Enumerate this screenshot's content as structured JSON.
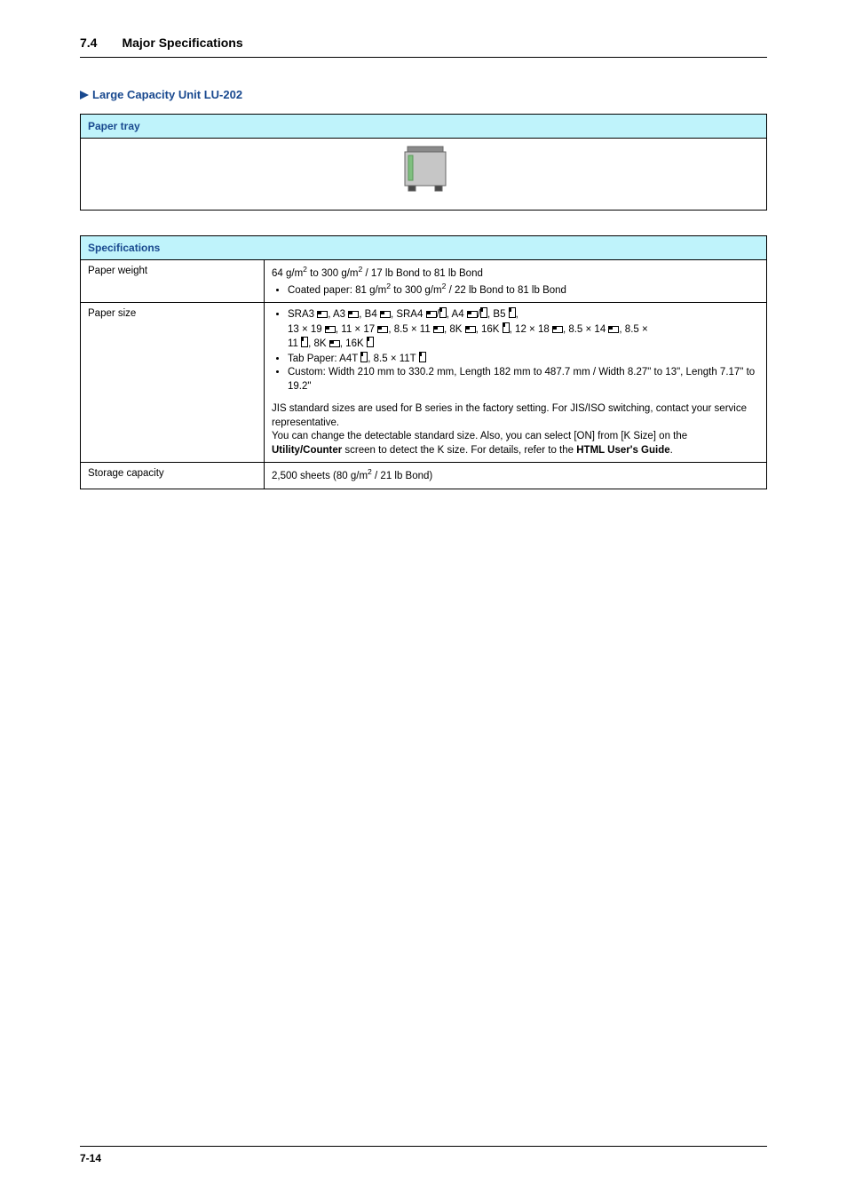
{
  "header": {
    "section_number": "7.4",
    "section_title": "Major Specifications"
  },
  "subheading": "Large Capacity Unit LU-202",
  "paper_tray_table": {
    "header": "Paper tray",
    "tray_icon": {
      "outer_stroke": "#656565",
      "outer_fill": "#c6c6c6",
      "leg_stroke": "#656565",
      "handle_fill": "#7fbf7f",
      "handle_stroke": "#5a9a5a",
      "top_stroke": "#656565",
      "top_fill": "#8a8a8a"
    }
  },
  "spec_table": {
    "header": "Specifications",
    "rows": {
      "paper_weight": {
        "label": "Paper weight",
        "line1_pre": "64 g/m",
        "line1_mid": " to 300 g/m",
        "line1_post": " / 17 lb Bond to 81 lb Bond",
        "bullet_pre": "Coated paper: 81 g/m",
        "bullet_mid": " to 300 g/m",
        "bullet_post": " / 22 lb Bond to 81 lb Bond"
      },
      "paper_size": {
        "label": "Paper size",
        "bullet1_parts": [
          "SRA3 ",
          "w",
          ", A3 ",
          "w",
          ", B4 ",
          "w",
          ", SRA4 ",
          "w",
          "/",
          "v",
          ", A4 ",
          "w",
          "/",
          "v",
          ", B5 ",
          "v",
          ","
        ],
        "line2_parts": [
          "13 × 19 ",
          "w",
          ", 11 × 17 ",
          "w",
          ", 8.5 × 11 ",
          "w",
          ", 8K ",
          "w",
          ", 16K ",
          "v",
          ", 12 × 18 ",
          "w",
          ", 8.5 × 14 ",
          "w",
          ", 8.5 × "
        ],
        "line3_parts": [
          "11 ",
          "v",
          ", 8K ",
          "w",
          ", 16K ",
          "v"
        ],
        "bullet2_parts": [
          "Tab Paper: A4T ",
          "v",
          ", 8.5 × 11T ",
          "v"
        ],
        "bullet3": "Custom: Width 210 mm to 330.2 mm, Length 182 mm to 487.7 mm / Width 8.27\" to 13\", Length 7.17\" to 19.2\"",
        "para1": "JIS standard sizes are used for B series in the factory setting. For JIS/ISO switching, contact your service representative.",
        "para2_pre": "You can change the detectable standard size. Also, you can select [ON] from [K Size] on the ",
        "para2_b1": "Utility/Counter",
        "para2_mid": " screen to detect the K size. For details, refer to the ",
        "para2_b2": "HTML User's Guide",
        "para2_post": "."
      },
      "storage_capacity": {
        "label": "Storage capacity",
        "value_pre": "2,500 sheets (80 g/m",
        "value_post": " / 21 lb Bond)"
      }
    }
  },
  "orient_icon": {
    "stroke": "#000000",
    "fill": "none",
    "corner_fill": "#000000"
  },
  "footer": {
    "page": "7-14"
  }
}
